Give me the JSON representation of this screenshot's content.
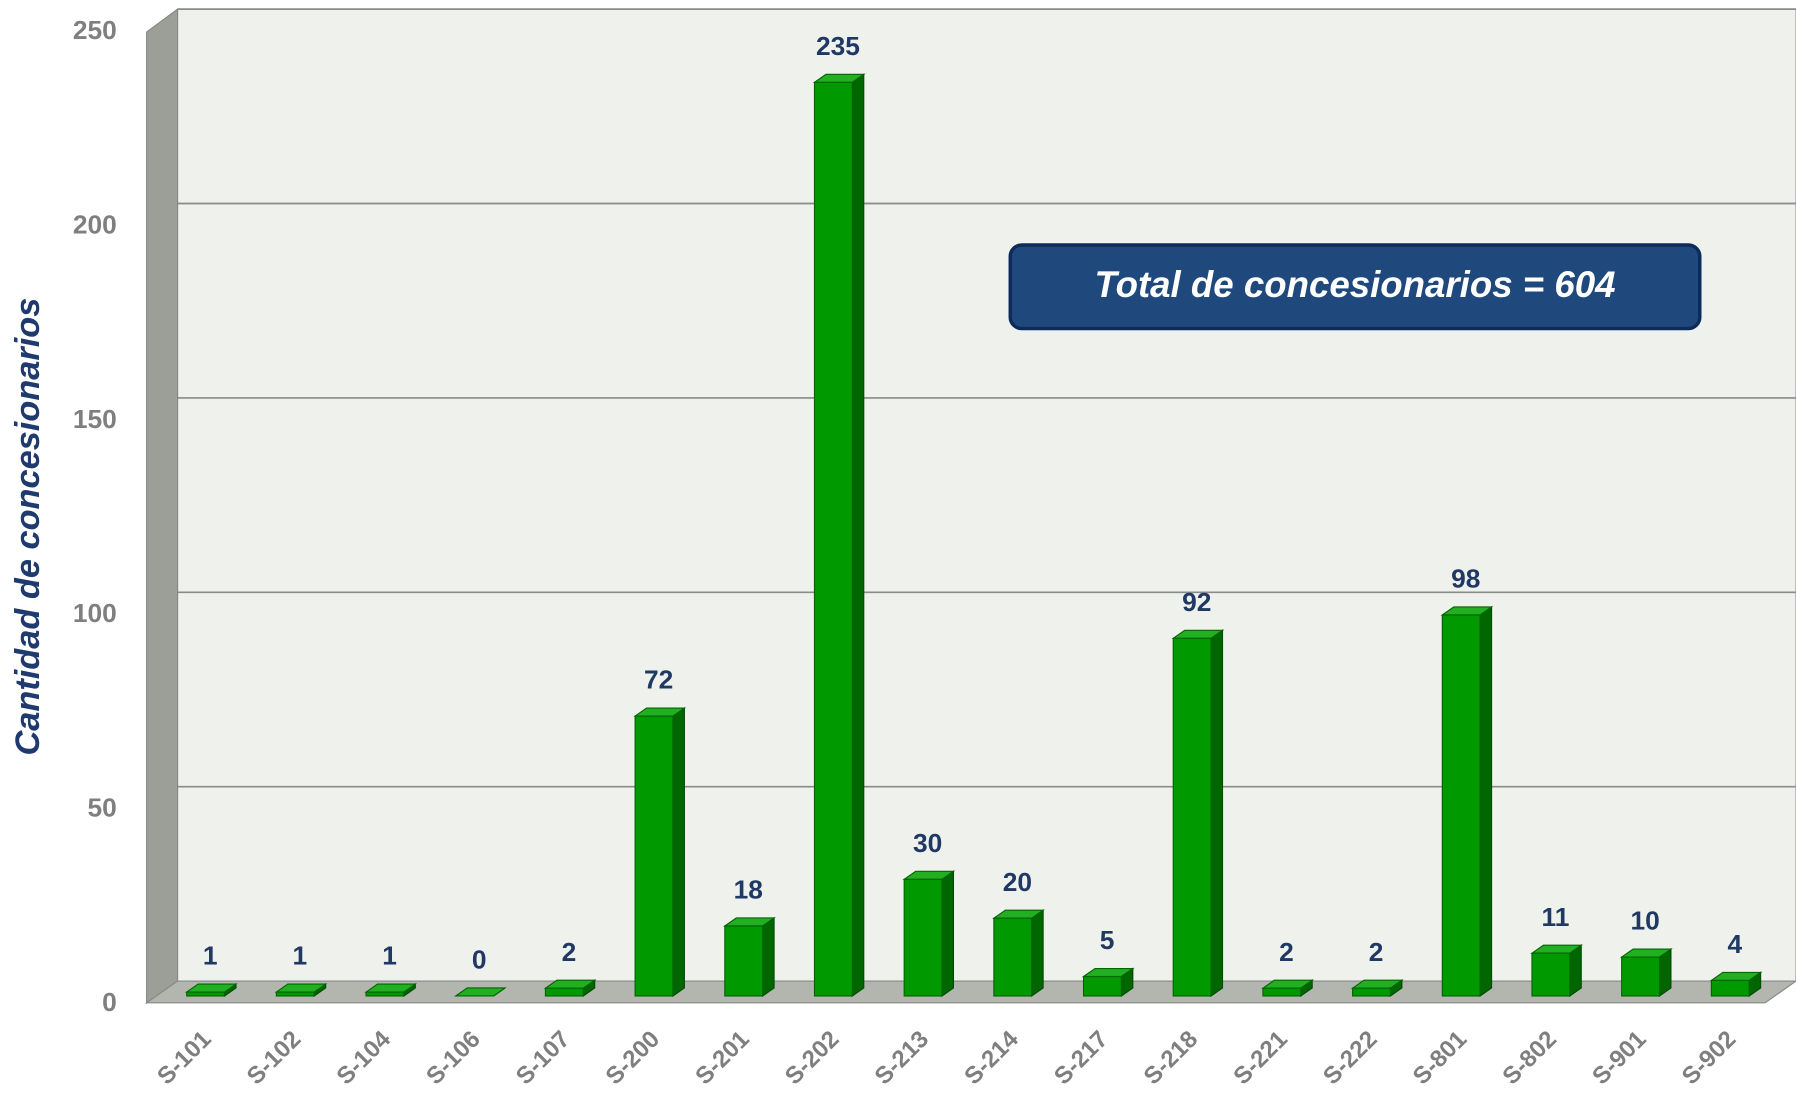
{
  "chart_data": {
    "type": "bar3d",
    "y_label": "Cantidad de concesionarios",
    "annotation": "Total de concesionarios = 604",
    "categories": [
      "S-101",
      "S-102",
      "S-104",
      "S-106",
      "S-107",
      "S-200",
      "S-201",
      "S-202",
      "S-213",
      "S-214",
      "S-217",
      "S-218",
      "S-221",
      "S-222",
      "S-801",
      "S-802",
      "S-901",
      "S-902"
    ],
    "values": [
      1,
      1,
      1,
      0,
      2,
      72,
      18,
      235,
      30,
      20,
      5,
      92,
      2,
      2,
      98,
      11,
      10,
      4
    ],
    "color": "#009900",
    "ylim": [
      0,
      250
    ],
    "yticks": [
      0,
      50,
      100,
      150,
      200,
      250
    ],
    "grid": true
  }
}
